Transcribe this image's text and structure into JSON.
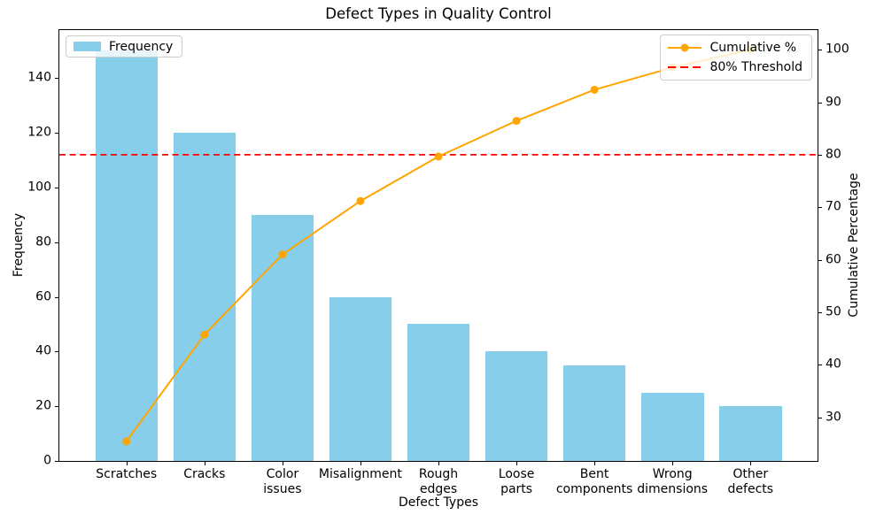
{
  "chart": {
    "title": "Defect Types in Quality Control",
    "xlabel": "Defect Types",
    "ylabel_left": "Frequency",
    "ylabel_right": "Cumulative Percentage",
    "legend_left": {
      "position": "upper left",
      "items": [
        {
          "label": "Frequency",
          "marker": "bar-swatch",
          "color": "#87CEEB"
        }
      ]
    },
    "legend_right": {
      "position": "upper right",
      "items": [
        {
          "label": "Cumulative %",
          "marker": "line-with-dot",
          "color": "#FFA500"
        },
        {
          "label": "80% Threshold",
          "marker": "dashed-line",
          "color": "#FF0000"
        }
      ]
    }
  },
  "chart_data": {
    "type": "pareto (bar + line)",
    "title": "Defect Types in Quality Control",
    "xlabel": "Defect Types",
    "categories": [
      "Scratches",
      "Cracks",
      "Color issues",
      "Misalignment",
      "Rough edges",
      "Loose parts",
      "Bent components",
      "Wrong dimensions",
      "Other defects"
    ],
    "series": [
      {
        "name": "Frequency",
        "type": "bar",
        "axis": "left",
        "color": "#87CEEB",
        "values": [
          150,
          120,
          90,
          60,
          50,
          40,
          35,
          25,
          20
        ]
      },
      {
        "name": "Cumulative %",
        "type": "line",
        "axis": "right",
        "color": "#FFA500",
        "marker": "circle",
        "values": [
          25.42,
          45.76,
          61.02,
          71.19,
          79.66,
          86.44,
          92.37,
          96.61,
          100.0
        ]
      }
    ],
    "threshold": {
      "label": "80% Threshold",
      "value": 80,
      "axis": "right",
      "color": "#FF0000",
      "style": "dashed"
    },
    "left_axis": {
      "label": "Frequency",
      "ticks": [
        0,
        20,
        40,
        60,
        80,
        100,
        120,
        140
      ],
      "range": [
        0,
        157.5
      ]
    },
    "right_axis": {
      "label": "Cumulative Percentage",
      "ticks": [
        30,
        40,
        50,
        60,
        70,
        80,
        90,
        100
      ],
      "range": [
        21.7,
        103.73
      ]
    },
    "grid": false,
    "background": "#ffffff",
    "legend_positions": {
      "Frequency": "upper left",
      "Cumulative %": "upper right"
    }
  }
}
